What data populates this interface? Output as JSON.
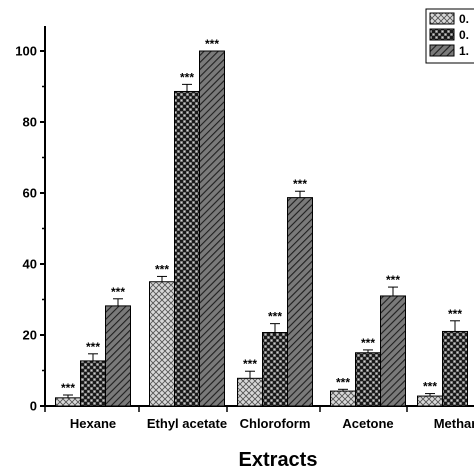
{
  "chart_data": {
    "type": "bar",
    "xlabel": "Extracts",
    "ylabel": "",
    "ylim": [
      0,
      105
    ],
    "yticks": [
      "0",
      "20",
      "40",
      "60",
      "80",
      "100"
    ],
    "categories": [
      "Hexane",
      "Ethyl acetate",
      "Chloroform",
      "Acetone",
      "Methar"
    ],
    "legend": {
      "placement": "top-right",
      "entries": [
        "0.",
        "0.",
        "1."
      ]
    },
    "series": [
      {
        "name": "0.",
        "pattern": "crosshatch-light",
        "values": [
          2.3,
          35.0,
          7.8,
          4.2,
          2.8
        ],
        "errors": [
          0.8,
          1.5,
          2.0,
          0.5,
          0.7
        ],
        "labels": [
          "***",
          "***",
          "***",
          "***",
          "***"
        ]
      },
      {
        "name": "0.",
        "pattern": "checker-dark",
        "values": [
          12.7,
          88.6,
          20.7,
          15.0,
          21.0
        ],
        "errors": [
          2.0,
          2.0,
          2.5,
          0.8,
          3.0
        ],
        "labels": [
          "***",
          "***",
          "***",
          "***",
          "***"
        ]
      },
      {
        "name": "1.",
        "pattern": "diagonal",
        "values": [
          28.2,
          100.0,
          58.7,
          31.0,
          0
        ],
        "errors": [
          2.0,
          0,
          1.8,
          2.5,
          0
        ],
        "labels": [
          "***",
          "***",
          "***",
          "***",
          ""
        ]
      }
    ],
    "grid": false
  }
}
